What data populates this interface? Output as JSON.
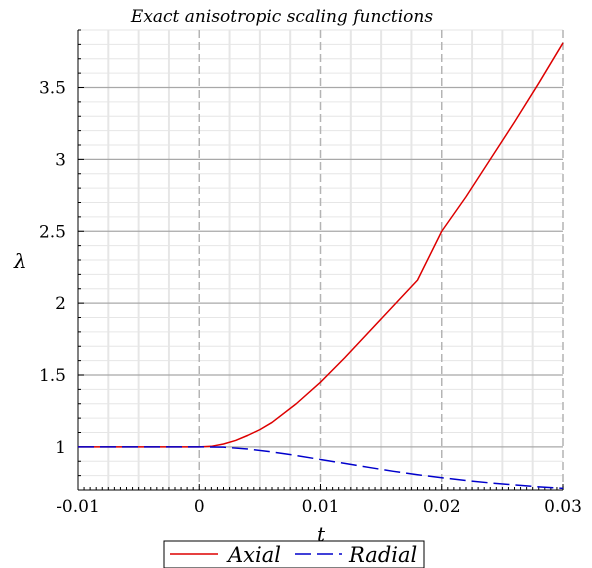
{
  "chart_data": {
    "type": "line",
    "title": "Exact anisotropic scaling functions",
    "xlabel": "t",
    "ylabel": "λ",
    "xlim": [
      -0.01,
      0.03
    ],
    "ylim": [
      0.7,
      3.9
    ],
    "x_ticks": [
      {
        "value": -0.01,
        "label": "-0.01"
      },
      {
        "value": 0,
        "label": "0"
      },
      {
        "value": 0.01,
        "label": "0.01"
      },
      {
        "value": 0.02,
        "label": "0.02"
      },
      {
        "value": 0.03,
        "label": "0.03"
      }
    ],
    "y_ticks": [
      {
        "value": 1,
        "label": "1"
      },
      {
        "value": 1.5,
        "label": "1.5"
      },
      {
        "value": 2,
        "label": "2"
      },
      {
        "value": 2.5,
        "label": "2.5"
      },
      {
        "value": 3,
        "label": "3"
      },
      {
        "value": 3.5,
        "label": "3.5"
      }
    ],
    "grid": true,
    "legend_position": "bottom",
    "series": [
      {
        "name": "Axial",
        "color": "#dd0000",
        "dash": "solid",
        "x": [
          -0.01,
          -0.005,
          0,
          0.001,
          0.002,
          0.003,
          0.004,
          0.005,
          0.006,
          0.008,
          0.01,
          0.012,
          0.014,
          0.016,
          0.018,
          0.02,
          0.022,
          0.024,
          0.026,
          0.028,
          0.03
        ],
        "y": [
          1,
          1,
          1,
          1.004,
          1.02,
          1.045,
          1.08,
          1.12,
          1.17,
          1.3,
          1.45,
          1.62,
          1.8,
          1.98,
          2.16,
          2.5,
          2.74,
          3.0,
          3.26,
          3.53,
          3.81
        ]
      },
      {
        "name": "Radial",
        "color": "#0000cc",
        "dash": "dashed",
        "x": [
          -0.01,
          -0.005,
          0,
          0.002,
          0.004,
          0.006,
          0.008,
          0.01,
          0.012,
          0.014,
          0.016,
          0.018,
          0.02,
          0.022,
          0.024,
          0.026,
          0.028,
          0.03
        ],
        "y": [
          1,
          1,
          1,
          0.998,
          0.985,
          0.965,
          0.94,
          0.912,
          0.885,
          0.857,
          0.83,
          0.806,
          0.785,
          0.766,
          0.749,
          0.735,
          0.722,
          0.711
        ]
      }
    ]
  }
}
